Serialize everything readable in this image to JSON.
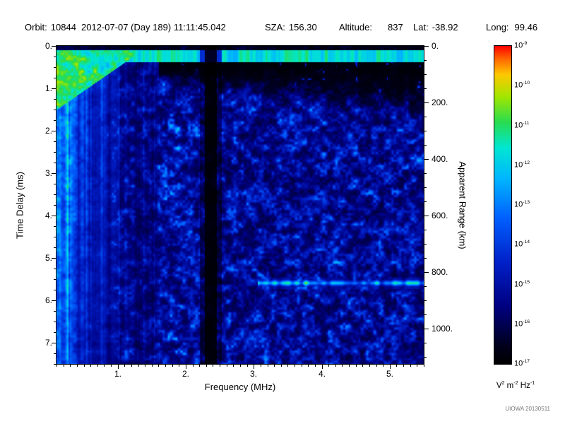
{
  "header": {
    "orbit_label": "Orbit:",
    "orbit_value": "10844",
    "datetime": "2012-07-07 (Day 189) 11:11:45.042",
    "sza_label": "SZA:",
    "sza_value": "156.30",
    "altitude_label": "Altitude:",
    "altitude_value": "837",
    "lat_label": "Lat:",
    "lat_value": "-38.92",
    "long_label": "Long:",
    "long_value": "99.46"
  },
  "footer": {
    "credit": "UIOWA 20130511"
  },
  "chart_data": {
    "type": "heatmap",
    "xlabel": "Frequency (MHz)",
    "ylabel": "Time Delay (ms)",
    "y2label": "Apparent Range (km)",
    "xlim": [
      0.1,
      5.5
    ],
    "ylim": [
      0,
      7.5
    ],
    "y2lim": [
      0,
      1125
    ],
    "x_ticks": [
      "1.",
      "2.",
      "3.",
      "4.",
      "5."
    ],
    "y_ticks": [
      "0.",
      "1.",
      "2.",
      "3.",
      "4.",
      "5.",
      "6.",
      "7."
    ],
    "y2_ticks": [
      "0.",
      "200.",
      "400.",
      "600.",
      "800.",
      "1000."
    ],
    "x_minor_step": 0.1,
    "y_minor_step": 0.25,
    "y2_minor_step": 50,
    "colorbar": {
      "base": "10",
      "exponents": [
        "-9",
        "-10",
        "-11",
        "-12",
        "-13",
        "-14",
        "-15",
        "-16",
        "-17"
      ],
      "units": [
        [
          "V",
          "2"
        ],
        [
          "m",
          "-2"
        ],
        [
          "Hz",
          "-1"
        ]
      ]
    },
    "colormap": [
      [
        0.0,
        "#000000"
      ],
      [
        0.06,
        "#00001e"
      ],
      [
        0.18,
        "#000080"
      ],
      [
        0.32,
        "#0020c8"
      ],
      [
        0.46,
        "#0060ff"
      ],
      [
        0.58,
        "#00b4ff"
      ],
      [
        0.68,
        "#00e6d2"
      ],
      [
        0.76,
        "#28dc50"
      ],
      [
        0.84,
        "#a0e600"
      ],
      [
        0.91,
        "#ffc800"
      ],
      [
        0.96,
        "#ff6400"
      ],
      [
        1.0,
        "#ff0000"
      ]
    ],
    "features": {
      "surface_echo": {
        "delay_ms": [
          0.1,
          0.38
        ]
      },
      "ionospheric_echo_region": {
        "freq_max_mhz": 1.6,
        "apex_delay_ms": 1.5
      },
      "attenuation_band_mhz": [
        2.28,
        2.45
      ],
      "streak": {
        "delay_ms": [
          5.45,
          5.72
        ],
        "freq_min_mhz": 3.05
      },
      "intensity_range_exp": [
        -17,
        -9
      ],
      "noise_seed": 20130511
    }
  }
}
